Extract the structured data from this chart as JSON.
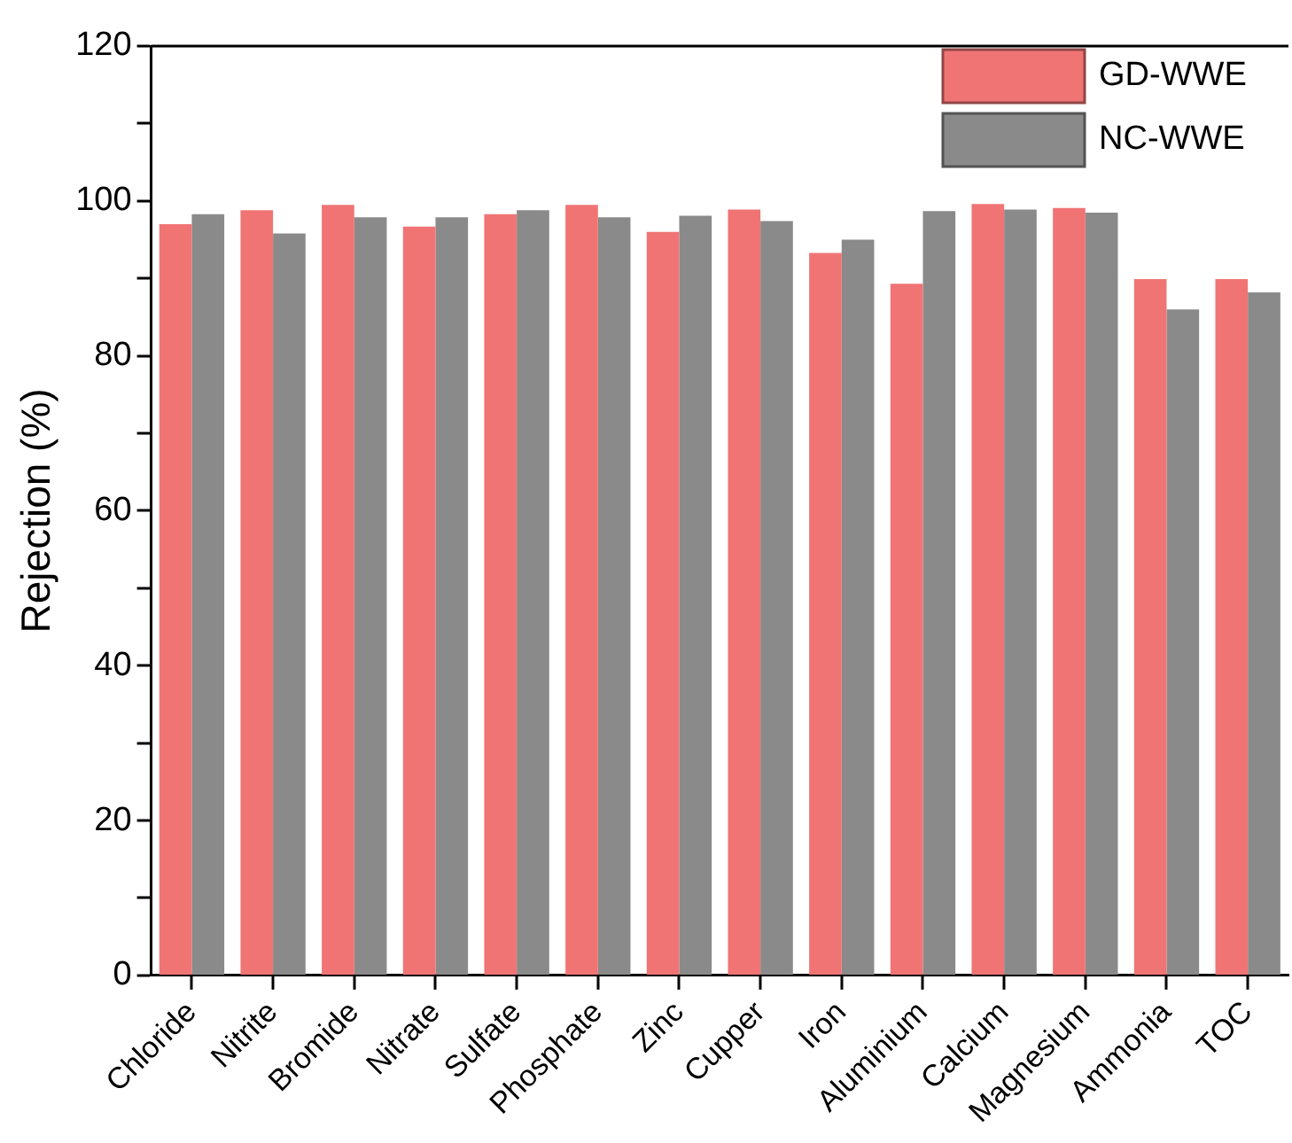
{
  "chart_data": {
    "type": "bar",
    "ylabel": "Rejection (%)",
    "categories": [
      "Chloride",
      "Nitrite",
      "Bromide",
      "Nitrate",
      "Sulfate",
      "Phosphate",
      "Zinc",
      "Cupper",
      "Iron",
      "Aluminium",
      "Calcium",
      "Magnesium",
      "Ammonia",
      "TOC"
    ],
    "series": [
      {
        "name": "GD-WWE",
        "color": "#f07474",
        "values": [
          97.0,
          98.8,
          99.5,
          96.7,
          98.3,
          99.5,
          96.0,
          98.9,
          93.3,
          89.3,
          99.6,
          99.1,
          89.9,
          89.9
        ]
      },
      {
        "name": "NC-WWE",
        "color": "#8a8a8a",
        "values": [
          98.3,
          95.8,
          97.9,
          97.9,
          98.8,
          97.9,
          98.1,
          97.4,
          95.0,
          98.7,
          98.9,
          98.5,
          86.0,
          88.2
        ]
      }
    ],
    "ylim": [
      0,
      120
    ],
    "yticks": [
      0,
      {
        "value": 10,
        "label": null
      },
      20,
      {
        "value": 30,
        "label": null
      },
      40,
      {
        "value": 50,
        "label": null
      },
      60,
      {
        "value": 70,
        "label": null
      },
      80,
      {
        "value": 90,
        "label": null
      },
      100,
      {
        "value": 110,
        "label": null
      },
      120
    ],
    "grid": false,
    "legend": "top right"
  }
}
